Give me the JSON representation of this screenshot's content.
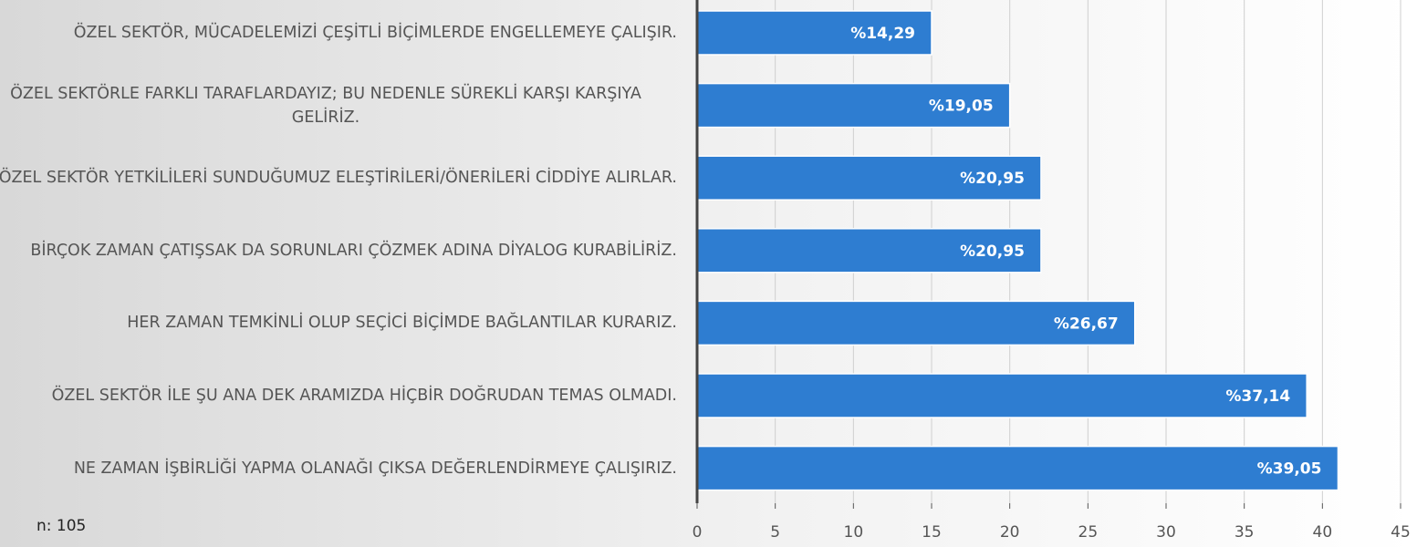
{
  "chart_data": {
    "type": "bar",
    "orientation": "horizontal",
    "categories": [
      "ÖZEL SEKTÖR, MÜCADELEMİZİ ÇEŞİTLİ BİÇİMLERDE ENGELLEMEYE ÇALIŞIR.",
      "ÖZEL SEKTÖRLE FARKLI TARAFLARDAYIZ; BU NEDENLE SÜREKLİ KARŞI KARŞIYA GELİRİZ.",
      "ÖZEL SEKTÖR YETKİLİLERİ SUNDUĞUMUZ ELEŞTİRİLERİ/ÖNERİLERİ CİDDİYE ALIRLAR.",
      "BİRÇOK ZAMAN ÇATIŞSAK DA SORUNLARI ÇÖZMEK ADINA DİYALOG KURABİLİRİZ.",
      "HER ZAMAN TEMKİNLİ OLUP SEÇİCİ BİÇİMDE BAĞLANTILAR KURARIZ.",
      "ÖZEL SEKTÖR İLE ŞU ANA DEK ARAMIZDA HİÇBİR DOĞRUDAN TEMAS OLMADI.",
      "NE ZAMAN İŞBİRLİĞİ YAPMA OLANAĞI ÇIKSA DEĞERLENDİRMEYE ÇALIŞIRIZ."
    ],
    "values": [
      15,
      20,
      22,
      22,
      28,
      39,
      41
    ],
    "value_labels": [
      "%14,29",
      "%19,05",
      "%20,95",
      "%20,95",
      "%26,67",
      "%37,14",
      "%39,05"
    ],
    "color": "#2e7dd1",
    "xlim": [
      0,
      45
    ],
    "xticks": [
      0,
      5,
      10,
      15,
      20,
      25,
      30,
      35,
      40,
      45
    ],
    "grid": true,
    "annotation": "n: 105"
  }
}
